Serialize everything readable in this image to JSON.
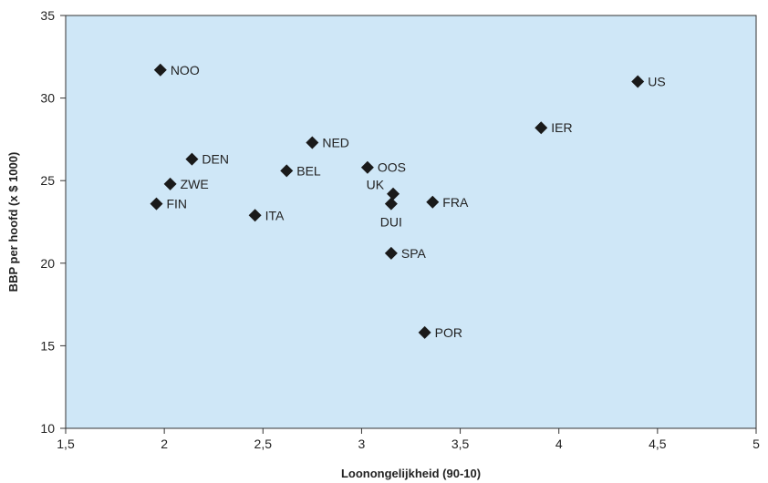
{
  "chart_data": {
    "type": "scatter",
    "title": "",
    "xlabel": "Loonongelijkheid (90-10)",
    "ylabel": "BBP per hoofd (x $ 1000)",
    "xlim": [
      1.5,
      5
    ],
    "ylim": [
      10,
      35
    ],
    "xticks": [
      "1,5",
      "2",
      "2,5",
      "3",
      "3,5",
      "4",
      "4,5",
      "5"
    ],
    "yticks": [
      "10",
      "15",
      "20",
      "25",
      "30",
      "35"
    ],
    "grid": false,
    "colors": {
      "plot_background": "#cfe7f7",
      "marker": "#1a1a1a"
    },
    "points": [
      {
        "label": "NOO",
        "x": 1.98,
        "y": 31.7
      },
      {
        "label": "US",
        "x": 4.4,
        "y": 31.0
      },
      {
        "label": "IER",
        "x": 3.91,
        "y": 28.2
      },
      {
        "label": "NED",
        "x": 2.75,
        "y": 27.3
      },
      {
        "label": "DEN",
        "x": 2.14,
        "y": 26.3
      },
      {
        "label": "OOS",
        "x": 3.03,
        "y": 25.8
      },
      {
        "label": "BEL",
        "x": 2.62,
        "y": 25.6
      },
      {
        "label": "ZWE",
        "x": 2.03,
        "y": 24.8
      },
      {
        "label": "UK",
        "x": 3.16,
        "y": 24.2
      },
      {
        "label": "FRA",
        "x": 3.36,
        "y": 23.7
      },
      {
        "label": "FIN",
        "x": 1.96,
        "y": 23.6
      },
      {
        "label": "DUI",
        "x": 3.15,
        "y": 23.6
      },
      {
        "label": "ITA",
        "x": 2.46,
        "y": 22.9
      },
      {
        "label": "SPA",
        "x": 3.15,
        "y": 20.6
      },
      {
        "label": "POR",
        "x": 3.32,
        "y": 15.8
      }
    ]
  }
}
